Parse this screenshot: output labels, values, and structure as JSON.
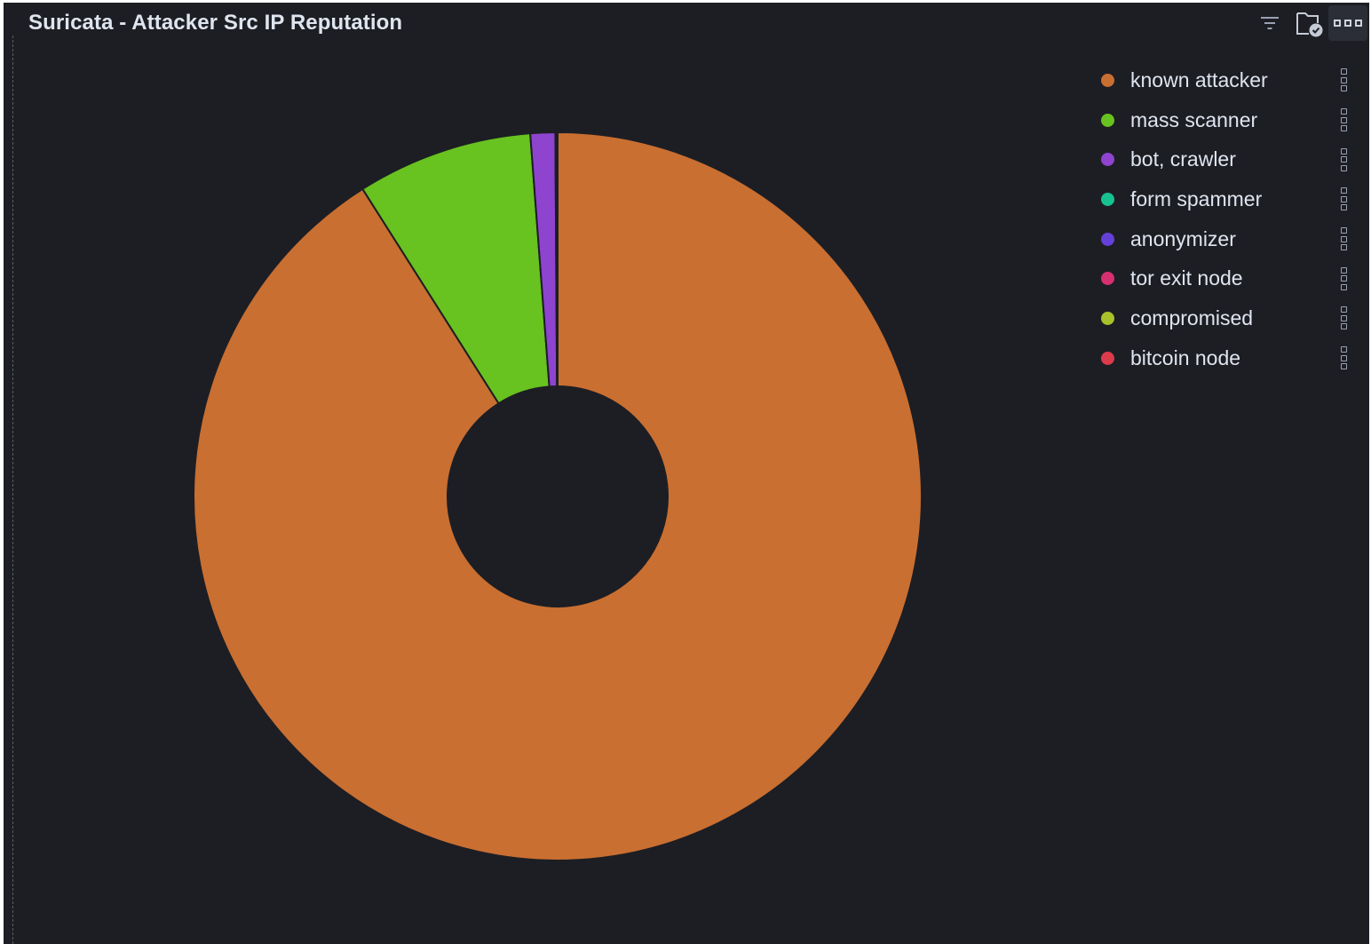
{
  "panel": {
    "title": "Suricata - Attacker Src IP Reputation"
  },
  "toolbar": {
    "icons": [
      "filter-icon",
      "folder-check-icon",
      "more-options-icon"
    ]
  },
  "colors": {
    "background": "#1d1e24",
    "known_attacker": "#c96f31",
    "mass_scanner": "#68c21f",
    "bot_crawler": "#8e44cf",
    "form_spammer": "#17c28f",
    "anonymizer": "#6440d8",
    "tor_exit_node": "#d6306f",
    "compromised": "#a9c22a",
    "bitcoin_node": "#dc3b4a"
  },
  "chart_data": {
    "type": "pie",
    "donut": true,
    "title": "Suricata - Attacker Src IP Reputation",
    "legend_position": "right",
    "series": [
      {
        "name": "known attacker",
        "value": 91.0,
        "color": "#c96f31"
      },
      {
        "name": "mass scanner",
        "value": 7.8,
        "color": "#68c21f"
      },
      {
        "name": "bot, crawler",
        "value": 1.1,
        "color": "#8e44cf"
      },
      {
        "name": "form spammer",
        "value": 0.05,
        "color": "#17c28f"
      },
      {
        "name": "anonymizer",
        "value": 0.02,
        "color": "#6440d8"
      },
      {
        "name": "tor exit node",
        "value": 0.01,
        "color": "#d6306f"
      },
      {
        "name": "compromised",
        "value": 0.01,
        "color": "#a9c22a"
      },
      {
        "name": "bitcoin node",
        "value": 0.01,
        "color": "#dc3b4a"
      }
    ]
  }
}
